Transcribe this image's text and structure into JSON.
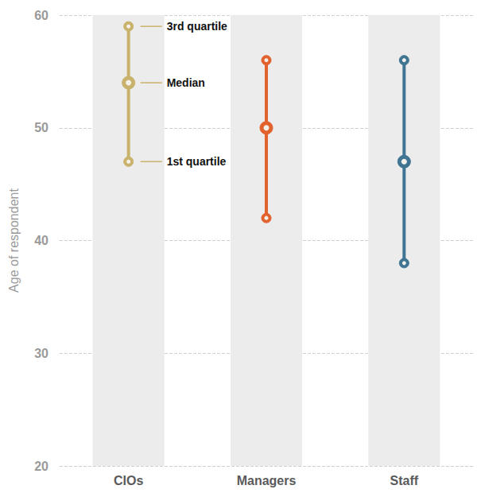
{
  "chart_data": {
    "type": "range",
    "categories": [
      "CIOs",
      "Managers",
      "Staff"
    ],
    "q1": [
      47,
      42,
      38
    ],
    "median": [
      54,
      50,
      47
    ],
    "q3": [
      59,
      56,
      56
    ],
    "colors": [
      "#c9b26b",
      "#e2622e",
      "#3f7592"
    ],
    "ylabel": "Age of respondent",
    "ylim": [
      20,
      60
    ],
    "yticks": [
      20,
      30,
      40,
      50,
      60
    ],
    "grid": true,
    "annotations": [
      {
        "text": "3rd quartile",
        "category": "CIOs",
        "y": 59
      },
      {
        "text": "Median",
        "category": "CIOs",
        "y": 54
      },
      {
        "text": "1st quartile",
        "category": "CIOs",
        "y": 47
      }
    ]
  }
}
